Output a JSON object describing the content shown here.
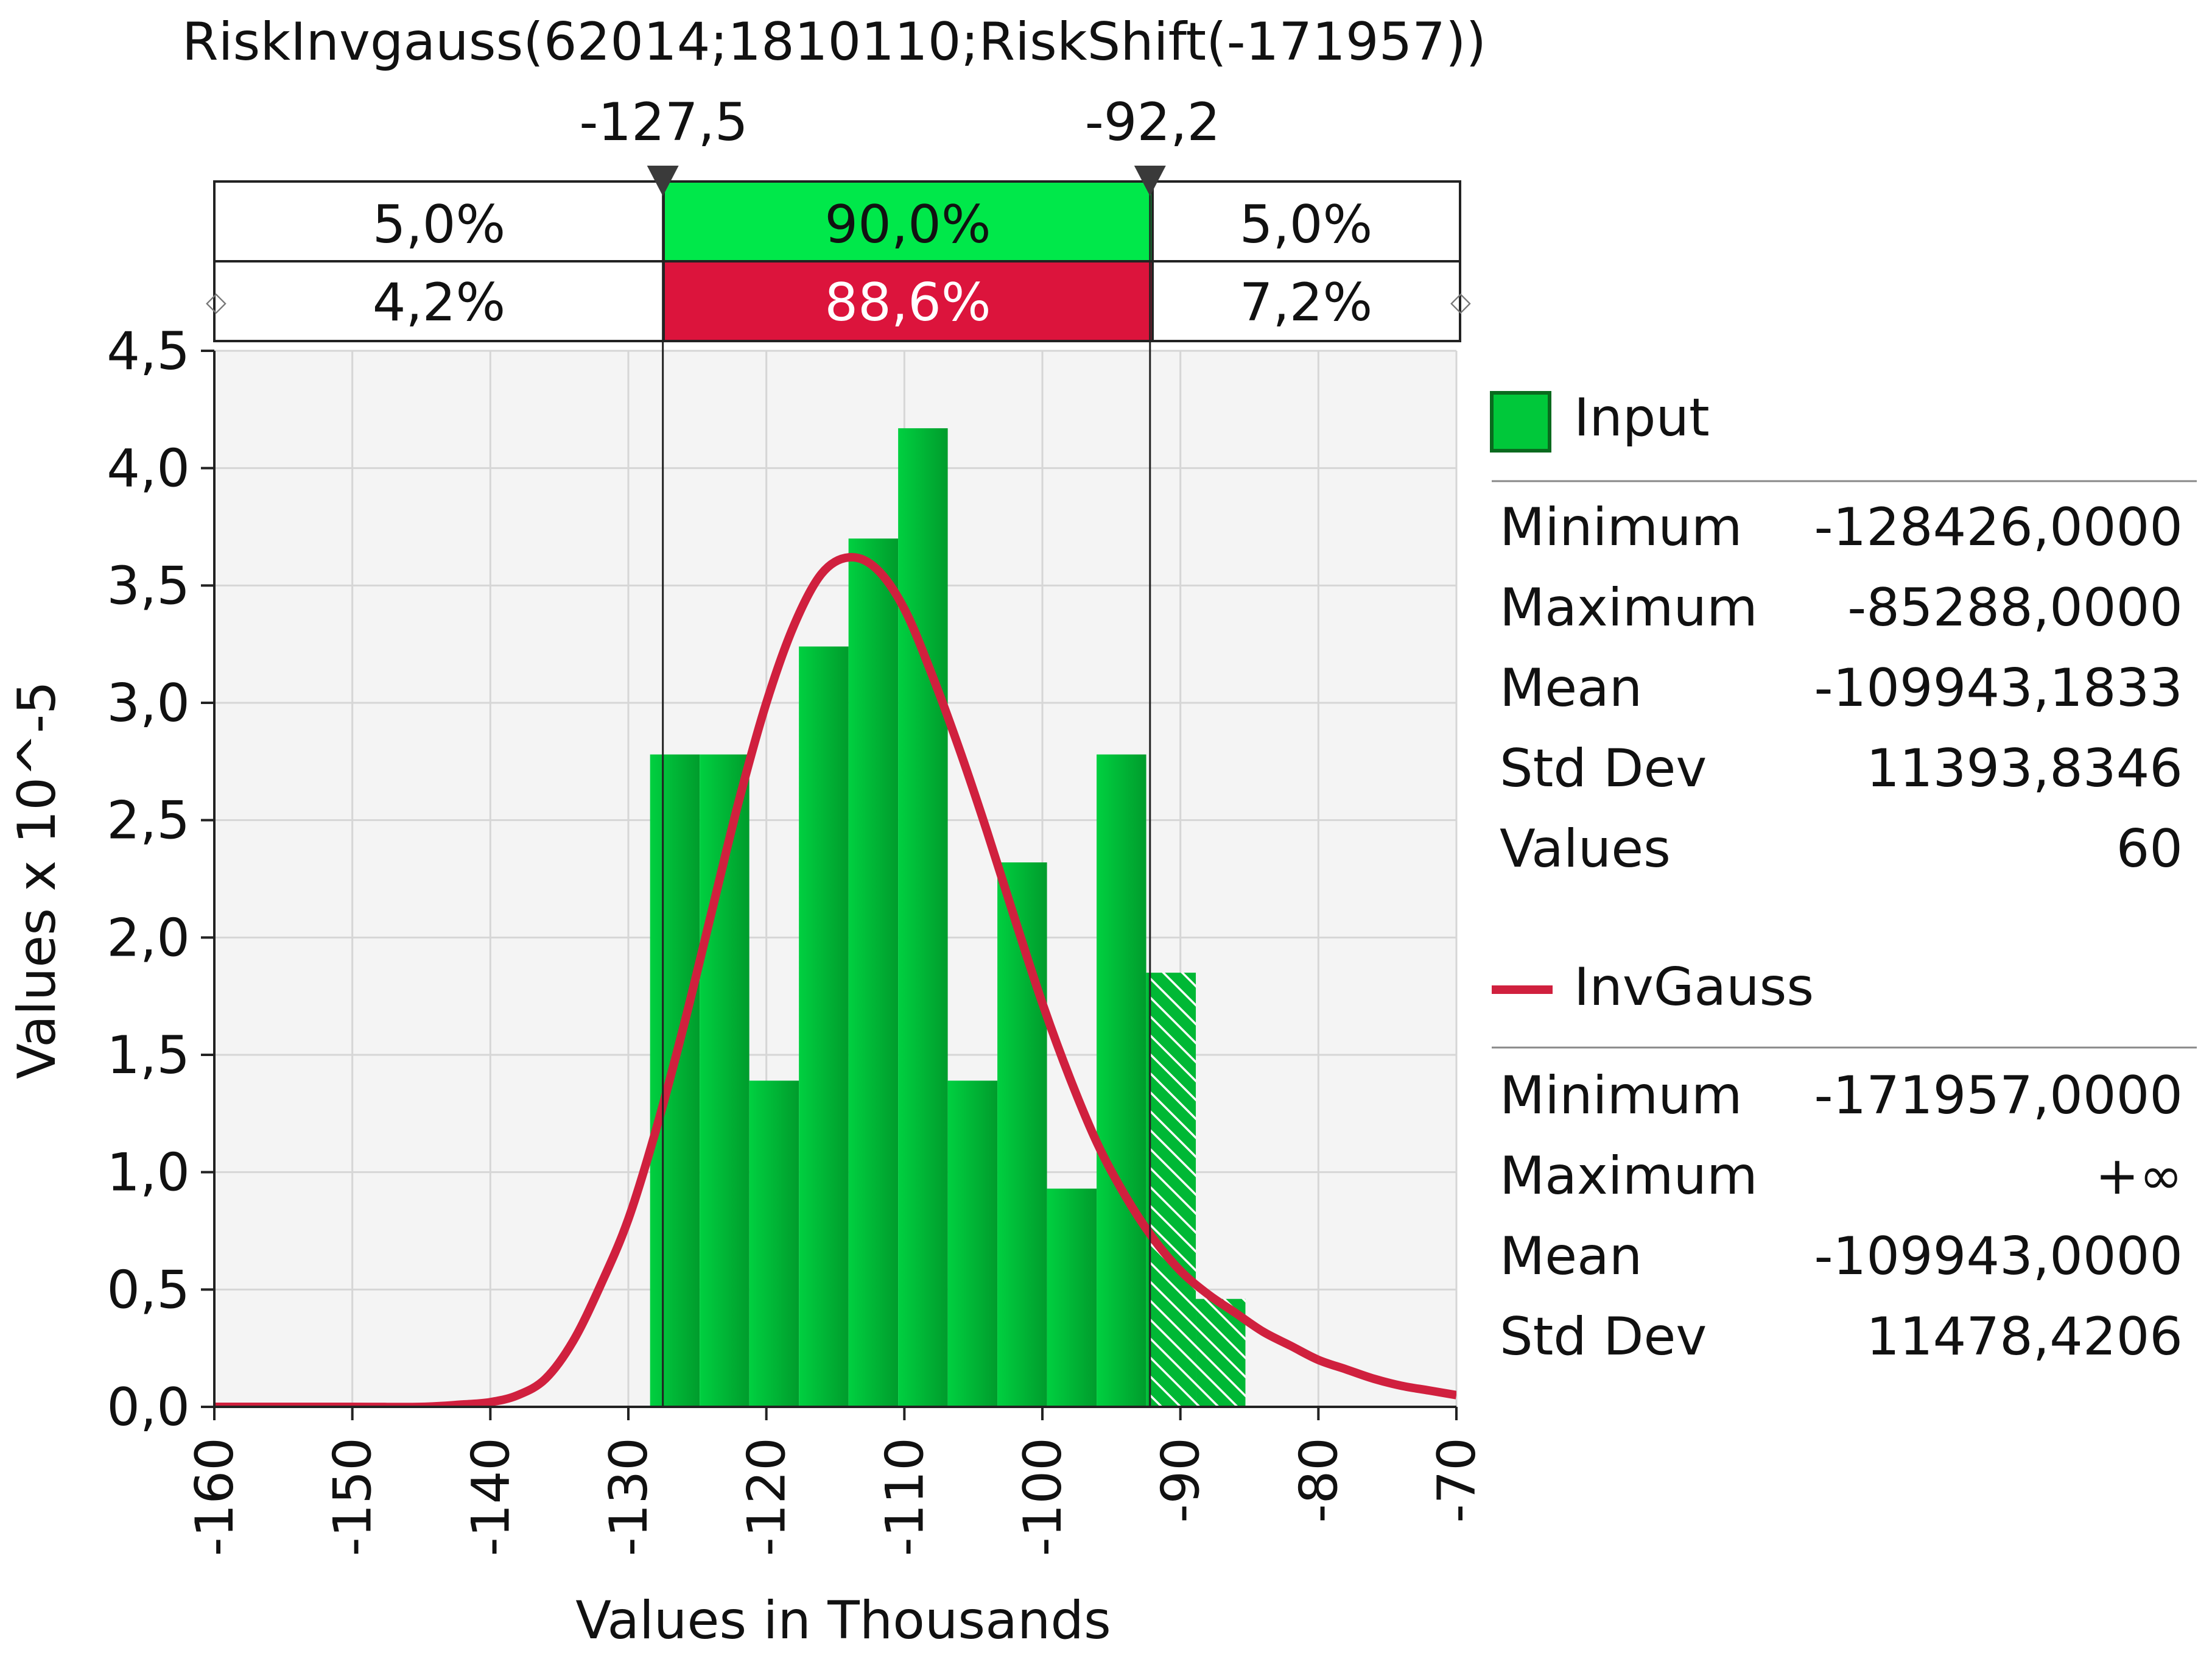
{
  "chart_data": {
    "type": "bar",
    "title": "RiskInvgauss(62014;1810110;RiskShift(-171957))",
    "xlabel": "Values in Thousands",
    "ylabel": "Values x 10^-5",
    "xlim": [
      -160,
      -70
    ],
    "ylim": [
      0,
      4.5
    ],
    "x_ticks": [
      "-160",
      "-150",
      "-140",
      "-130",
      "-120",
      "-110",
      "-100",
      "-90",
      "-80",
      "-70"
    ],
    "y_ticks": [
      "0,0",
      "0,5",
      "1,0",
      "1,5",
      "2,0",
      "2,5",
      "3,0",
      "3,5",
      "4,0",
      "4,5"
    ],
    "grid": true,
    "delimiters": {
      "left_label": "-127,5",
      "right_label": "-92,2",
      "left_value": -127.5,
      "right_value": -92.2
    },
    "probability_bands": {
      "input": [
        "5,0%",
        "90,0%",
        "5,0%"
      ],
      "fit": [
        "4,2%",
        "88,6%",
        "7,2%"
      ]
    },
    "series": [
      {
        "name": "Input",
        "kind": "histogram",
        "bin_edges": [
          -128.426,
          -124.831,
          -121.236,
          -117.641,
          -114.046,
          -110.451,
          -106.856,
          -103.261,
          -99.666,
          -96.071,
          -92.476,
          -88.881,
          -85.288
        ],
        "values": [
          2.78,
          2.78,
          1.39,
          3.24,
          3.7,
          4.17,
          1.39,
          2.32,
          0.93,
          2.78,
          1.85,
          0.46
        ]
      },
      {
        "name": "InvGauss",
        "kind": "density",
        "x": [
          -160,
          -150,
          -145,
          -142,
          -140,
          -138,
          -136,
          -134,
          -132,
          -130,
          -128,
          -126,
          -124,
          -122,
          -120,
          -118,
          -116,
          -114,
          -112,
          -110,
          -108,
          -106,
          -104,
          -102,
          -100,
          -98,
          -96,
          -94,
          -92,
          -90,
          -88,
          -86,
          -84,
          -82,
          -80,
          -78,
          -76,
          -74,
          -72,
          -70
        ],
        "values": [
          0.0,
          0.0,
          0.0,
          0.01,
          0.02,
          0.05,
          0.12,
          0.28,
          0.52,
          0.8,
          1.18,
          1.62,
          2.1,
          2.58,
          3.0,
          3.33,
          3.55,
          3.62,
          3.57,
          3.4,
          3.12,
          2.8,
          2.45,
          2.08,
          1.72,
          1.4,
          1.12,
          0.9,
          0.72,
          0.58,
          0.48,
          0.4,
          0.32,
          0.26,
          0.2,
          0.16,
          0.12,
          0.09,
          0.07,
          0.05
        ]
      }
    ],
    "stats": {
      "input": {
        "name": "Input",
        "rows": [
          {
            "label": "Minimum",
            "value": "-128426,0000"
          },
          {
            "label": "Maximum",
            "value": "-85288,0000"
          },
          {
            "label": "Mean",
            "value": "-109943,1833"
          },
          {
            "label": "Std Dev",
            "value": "11393,8346"
          },
          {
            "label": "Values",
            "value": "60"
          }
        ]
      },
      "fit": {
        "name": "InvGauss",
        "rows": [
          {
            "label": "Minimum",
            "value": "-171957,0000"
          },
          {
            "label": "Maximum",
            "value": "+∞"
          },
          {
            "label": "Mean",
            "value": "-109943,0000"
          },
          {
            "label": "Std Dev",
            "value": "11478,4206"
          }
        ]
      }
    },
    "colors": {
      "bar": "#00c83a",
      "bar_dark": "#009a2a",
      "curve": "#d0203e",
      "band_middle_top": "#00e84a",
      "band_middle_bottom": "#dc143c",
      "plot_bg": "#f4f4f4",
      "grid": "#d6d6d6"
    }
  }
}
